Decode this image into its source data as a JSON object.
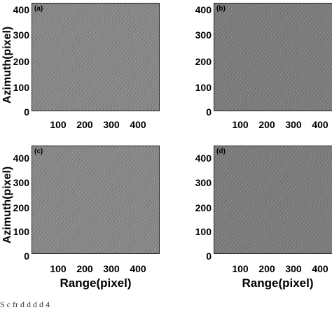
{
  "panels": [
    {
      "tag": "(a)"
    },
    {
      "tag": "(b)"
    },
    {
      "tag": "(c)"
    },
    {
      "tag": "(d)"
    }
  ],
  "y_ticks": [
    "400",
    "300",
    "200",
    "100",
    "0"
  ],
  "x_ticks": [
    "100",
    "200",
    "300",
    "400"
  ],
  "y_label": "Azimuth(pixel)",
  "x_label": "Range(pixel)",
  "caption": "S  c  fr  d  d d      d 4"
}
